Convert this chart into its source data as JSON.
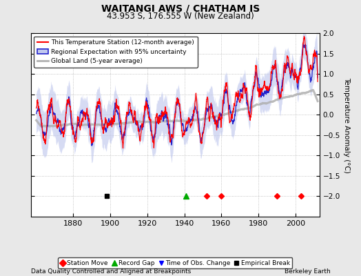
{
  "title": "WAITANGI AWS / CHATHAM IS",
  "subtitle": "43.953 S, 176.555 W (New Zealand)",
  "ylabel": "Temperature Anomaly (°C)",
  "xlabel_note": "Data Quality Controlled and Aligned at Breakpoints",
  "attribution": "Berkeley Earth",
  "ylim": [
    -2.5,
    2.0
  ],
  "xlim": [
    1857,
    2013
  ],
  "yticks": [
    -2,
    -1.5,
    -1,
    -0.5,
    0,
    0.5,
    1,
    1.5,
    2
  ],
  "xticks": [
    1880,
    1900,
    1920,
    1940,
    1960,
    1980,
    2000
  ],
  "station_move_years": [
    1952,
    1960,
    1990,
    2003
  ],
  "record_gap_years": [
    1941
  ],
  "obs_change_years": [],
  "empirical_break_years": [
    1898
  ],
  "bg_color": "#e8e8e8",
  "plot_bg_color": "#ffffff",
  "red_color": "#ff0000",
  "blue_color": "#2222cc",
  "fill_color": "#c0c8ee",
  "grey_color": "#b0b0b0",
  "seed": 17
}
